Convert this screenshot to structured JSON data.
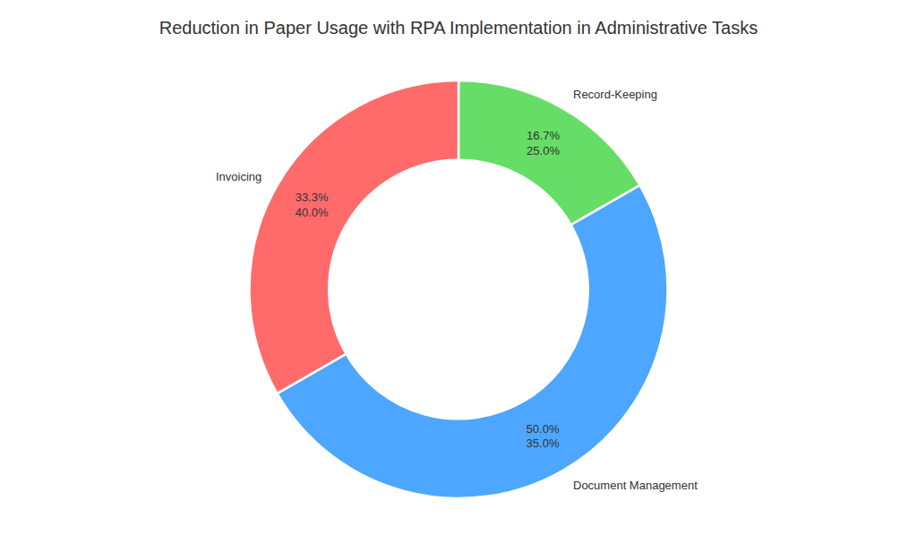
{
  "chart_data": {
    "type": "pie",
    "title": "Reduction in Paper Usage with RPA Implementation in Administrative Tasks",
    "categories": [
      "Record-Keeping",
      "Document Management",
      "Invoicing"
    ],
    "values": [
      16.7,
      50.0,
      33.3
    ],
    "value_labels": [
      "16.7%",
      "50.0%",
      "33.3%"
    ],
    "reductions": [
      25.0,
      35.0,
      40.0
    ],
    "reduction_labels": [
      "25.0%",
      "35.0%",
      "40.0%"
    ],
    "colors": [
      "#66dd66",
      "#4da6ff",
      "#ff6b6b"
    ],
    "data_labels": true
  }
}
